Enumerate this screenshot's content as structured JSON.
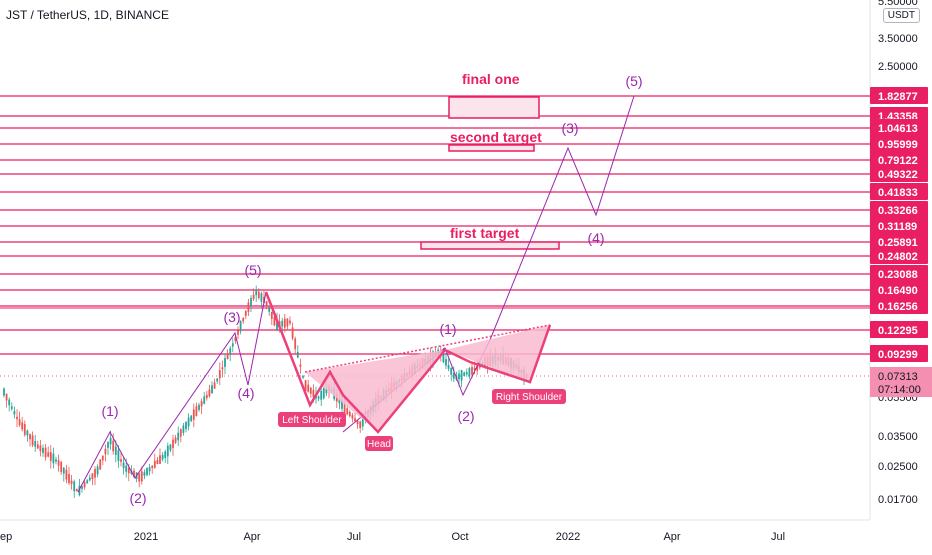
{
  "header": {
    "symbol_title": "JST / TetherUS, 1D, BINANCE",
    "currency_badge": "USDT"
  },
  "colors": {
    "level_line": "#e91e63",
    "wave": "#9c27b0",
    "pattern_fill": "#f8bbd0",
    "pattern_stroke": "#ec407a",
    "label_text": "#e91e63",
    "tag_bg": "#ec407a",
    "price_tag_bg": "#f48fb1",
    "current_price_tag_bg": "#f06292",
    "up_candle": "#26a69a",
    "down_candle": "#ef5350",
    "axis_text": "#131722"
  },
  "chart_data": {
    "type": "candlestick",
    "title": "JST / TetherUS, 1D, BINANCE",
    "y_scale": "log",
    "x_tick_labels": [
      "ep",
      "2021",
      "Apr",
      "Jul",
      "Oct",
      "2022",
      "Apr",
      "Jul"
    ],
    "y_tick_labels": [
      "5.50000",
      "3.50000",
      "2.50000",
      "0.05500",
      "0.03500",
      "0.02500",
      "0.01700"
    ],
    "price_levels": [
      "1.82877",
      "1.43358",
      "1.04613",
      "0.95999",
      "0.79122",
      "0.49322",
      "0.41833",
      "0.33266",
      "0.31189",
      "0.25891",
      "0.24802",
      "0.23088",
      "0.16490",
      "0.16256",
      "0.12295",
      "0.09299"
    ],
    "current_price": "0.07313",
    "countdown": "07:14:00",
    "target_labels": [
      {
        "text": "final one"
      },
      {
        "text": "second target"
      },
      {
        "text": "first target"
      }
    ],
    "wave_labels": [
      "(1)",
      "(2)",
      "(3)",
      "(4)",
      "(5)",
      "(1)",
      "(2)",
      "(3)",
      "(4)",
      "(5)"
    ],
    "pattern_labels": [
      "Left Shoulder",
      "Head",
      "Right Shoulder"
    ]
  }
}
